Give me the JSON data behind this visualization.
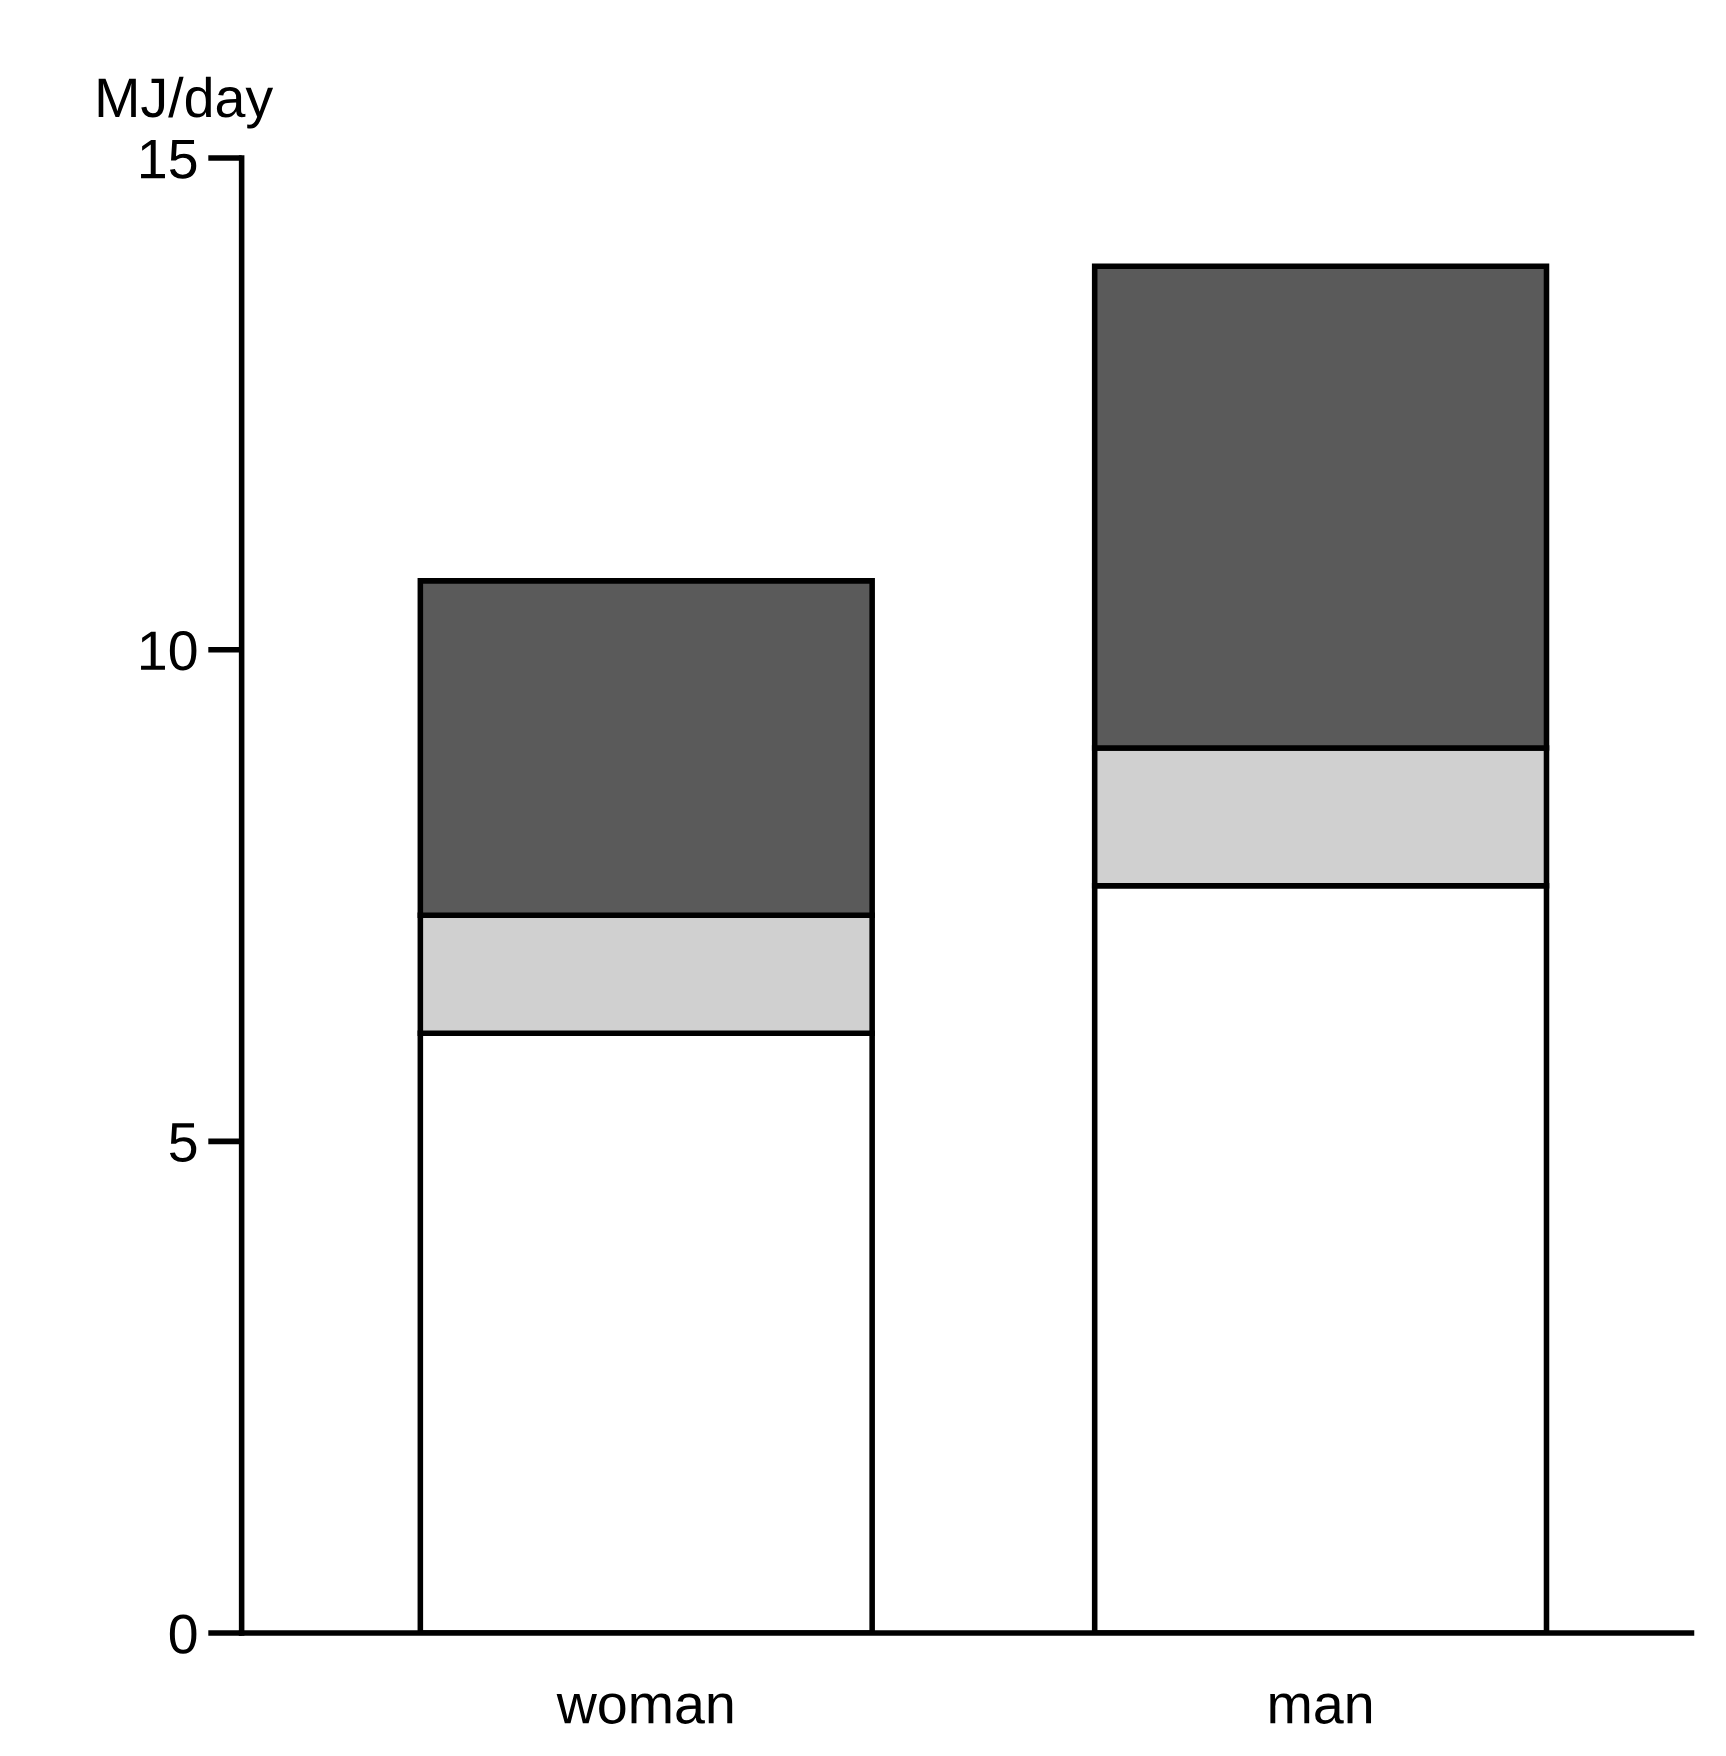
{
  "chart_data": {
    "type": "bar",
    "stacked": true,
    "ylabel": "MJ/day",
    "categories": [
      "woman",
      "man"
    ],
    "series": [
      {
        "color": "#ffffff",
        "values": [
          6.1,
          7.6
        ]
      },
      {
        "color": "#d0d0d0",
        "values": [
          1.2,
          1.4
        ]
      },
      {
        "color": "#5a5a5a",
        "values": [
          3.4,
          4.9
        ]
      }
    ],
    "ylim": [
      0,
      15
    ],
    "yticks": [
      0,
      5,
      10,
      15
    ],
    "grid": false,
    "legend": false
  }
}
